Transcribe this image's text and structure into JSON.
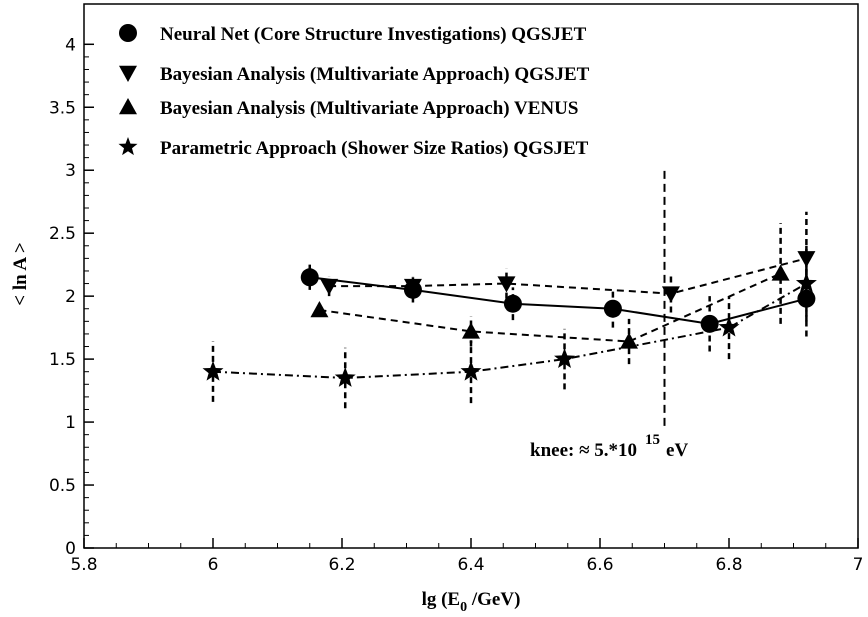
{
  "chart_data": {
    "type": "line",
    "x_label": {
      "main": "lg (E",
      "sub": "0",
      "rest": " /GeV)"
    },
    "y_label": "< ln A >",
    "xlim": [
      5.8,
      7.0
    ],
    "ylim": [
      0,
      4.32
    ],
    "xticks": [
      5.8,
      6,
      6.2,
      6.4,
      6.6,
      6.8,
      7
    ],
    "yticks": [
      0,
      0.5,
      1,
      1.5,
      2,
      2.5,
      3,
      3.5,
      4
    ],
    "knee_line": {
      "x": 6.7,
      "y": [
        0.97,
        3.0
      ]
    },
    "annotation": {
      "text": "knee:  ≈ 5.*10",
      "sup": "15",
      "unit": "eV"
    },
    "series": [
      {
        "name": "Neural Net (Core Structure Investigations) QGSJET",
        "color": "#000000",
        "marker": "circle",
        "line_style": "solid",
        "x": [
          6.15,
          6.31,
          6.465,
          6.62,
          6.77,
          6.92
        ],
        "values": [
          2.15,
          2.05,
          1.94,
          1.9,
          1.78,
          1.98
        ],
        "errors": [
          0.1,
          0.1,
          0.13,
          0.15,
          0.22,
          0.3
        ]
      },
      {
        "name": "Bayesian Analysis (Multivariate Approach) QGSJET",
        "color": "#000000",
        "marker": "triangle-down",
        "line_style": "dashed",
        "x": [
          6.18,
          6.31,
          6.455,
          6.71,
          6.92
        ],
        "values": [
          2.08,
          2.08,
          2.1,
          2.02,
          2.3
        ],
        "errors": [
          0.08,
          0.08,
          0.12,
          0.15,
          0.37
        ]
      },
      {
        "name": "Bayesian Analysis (Multivariate Approach) VENUS",
        "color": "#000000",
        "marker": "triangle-up",
        "line_style": "dashed",
        "x": [
          6.165,
          6.4,
          6.645,
          6.88
        ],
        "values": [
          1.89,
          1.72,
          1.64,
          2.18
        ],
        "errors": [
          0.05,
          0.12,
          0.18,
          0.4
        ]
      },
      {
        "name": "Parametric Approach (Shower Size Ratios) QGSJET",
        "color": "#000000",
        "marker": "star",
        "line_style": "dashdot",
        "x": [
          6.0,
          6.205,
          6.4,
          6.545,
          6.8,
          6.92
        ],
        "values": [
          1.4,
          1.35,
          1.4,
          1.5,
          1.75,
          2.1
        ],
        "errors": [
          0.24,
          0.24,
          0.25,
          0.24,
          0.25,
          0.3
        ]
      }
    ]
  }
}
